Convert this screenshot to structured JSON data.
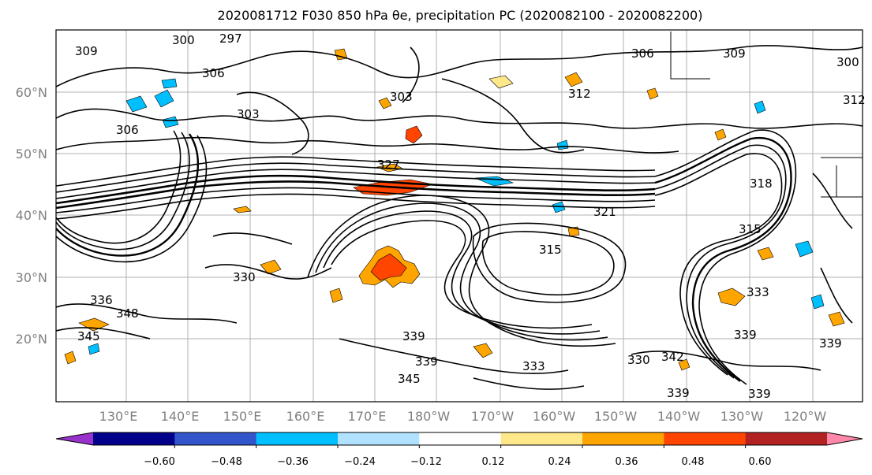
{
  "title": "2020081712 F030 850 hPa θe, precipitation PC (2020082100 - 2020082200)",
  "map": {
    "lat_labels": [
      "60°N",
      "50°N",
      "40°N",
      "30°N",
      "20°N"
    ],
    "lon_labels": [
      "130°E",
      "140°E",
      "150°E",
      "160°E",
      "170°E",
      "180°W",
      "170°W",
      "160°W",
      "150°W",
      "140°W",
      "130°W",
      "120°W"
    ],
    "contour_labels": [
      "300",
      "297",
      "306",
      "309",
      "306",
      "309",
      "300",
      "303",
      "312",
      "306",
      "318",
      "321",
      "315",
      "315",
      "330",
      "336",
      "348",
      "345",
      "339",
      "333",
      "339",
      "342",
      "339",
      "333",
      "339",
      "339",
      "339",
      "330",
      "345",
      "327",
      "303",
      "312"
    ]
  },
  "colorbar": {
    "colors": [
      "#9932CC",
      "#00008B",
      "#3355CC",
      "#00BFFF",
      "#B0E2FF",
      "#FFFFFF",
      "#FFE88A",
      "#FFA500",
      "#FF4500",
      "#B22222",
      "#FF88AA"
    ],
    "tick_labels": [
      "−0.60",
      "−0.48",
      "−0.36",
      "−0.24",
      "−0.12",
      "0.12",
      "0.24",
      "0.36",
      "0.48",
      "0.60"
    ]
  }
}
